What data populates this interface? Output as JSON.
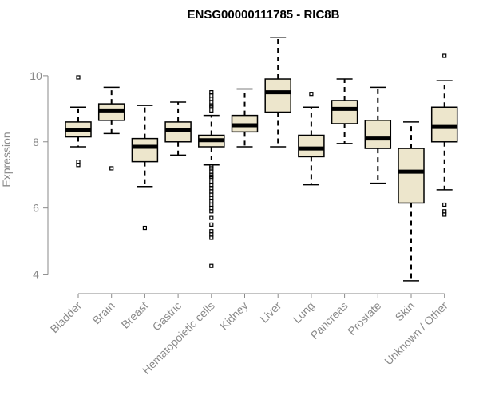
{
  "chart_data": {
    "type": "boxplot",
    "title": "ENSG00000111785 - RIC8B",
    "xlabel": "",
    "ylabel": "Expression",
    "ylim": [
      3.7,
      11.3
    ],
    "yticks": [
      4,
      6,
      8,
      10
    ],
    "box_fill": "#ede6cc",
    "categories": [
      "Bladder",
      "Brain",
      "Breast",
      "Gastric",
      "Hematopoietic cells",
      "Kidney",
      "Liver",
      "Lung",
      "Pancreas",
      "Prostate",
      "Skin",
      "Unknown / Other"
    ],
    "series": [
      {
        "name": "Bladder",
        "whisker_low": 7.85,
        "q1": 8.15,
        "median": 8.35,
        "q3": 8.6,
        "whisker_high": 9.05,
        "outliers": [
          9.95,
          7.4,
          7.3
        ]
      },
      {
        "name": "Brain",
        "whisker_low": 8.25,
        "q1": 8.65,
        "median": 8.95,
        "q3": 9.15,
        "whisker_high": 9.65,
        "outliers": [
          7.2
        ]
      },
      {
        "name": "Breast",
        "whisker_low": 6.65,
        "q1": 7.4,
        "median": 7.85,
        "q3": 8.1,
        "whisker_high": 9.1,
        "outliers": [
          5.4
        ]
      },
      {
        "name": "Gastric",
        "whisker_low": 7.6,
        "q1": 8.0,
        "median": 8.35,
        "q3": 8.6,
        "whisker_high": 9.2,
        "outliers": []
      },
      {
        "name": "Hematopoietic cells",
        "whisker_low": 7.3,
        "q1": 7.85,
        "median": 8.05,
        "q3": 8.2,
        "whisker_high": 8.8,
        "outliers": [
          9.5,
          9.4,
          9.3,
          9.2,
          9.1,
          9.05,
          8.95,
          7.25,
          7.2,
          7.1,
          7.0,
          6.95,
          6.9,
          6.8,
          6.7,
          6.6,
          6.5,
          6.4,
          6.3,
          6.2,
          6.1,
          6.0,
          5.9,
          5.7,
          5.5,
          5.3,
          5.2,
          5.1,
          4.25
        ]
      },
      {
        "name": "Kidney",
        "whisker_low": 7.85,
        "q1": 8.3,
        "median": 8.5,
        "q3": 8.8,
        "whisker_high": 9.6,
        "outliers": []
      },
      {
        "name": "Liver",
        "whisker_low": 7.85,
        "q1": 8.9,
        "median": 9.5,
        "q3": 9.9,
        "whisker_high": 11.15,
        "outliers": []
      },
      {
        "name": "Lung",
        "whisker_low": 6.7,
        "q1": 7.55,
        "median": 7.8,
        "q3": 8.2,
        "whisker_high": 9.05,
        "outliers": [
          9.45
        ]
      },
      {
        "name": "Pancreas",
        "whisker_low": 7.95,
        "q1": 8.55,
        "median": 9.0,
        "q3": 9.25,
        "whisker_high": 9.9,
        "outliers": []
      },
      {
        "name": "Prostate",
        "whisker_low": 6.75,
        "q1": 7.8,
        "median": 8.1,
        "q3": 8.65,
        "whisker_high": 9.65,
        "outliers": []
      },
      {
        "name": "Skin",
        "whisker_low": 3.8,
        "q1": 6.15,
        "median": 7.1,
        "q3": 7.8,
        "whisker_high": 8.6,
        "outliers": []
      },
      {
        "name": "Unknown / Other",
        "whisker_low": 6.55,
        "q1": 8.0,
        "median": 8.45,
        "q3": 9.05,
        "whisker_high": 9.85,
        "outliers": [
          10.6,
          6.1,
          5.9,
          5.8
        ]
      }
    ]
  }
}
